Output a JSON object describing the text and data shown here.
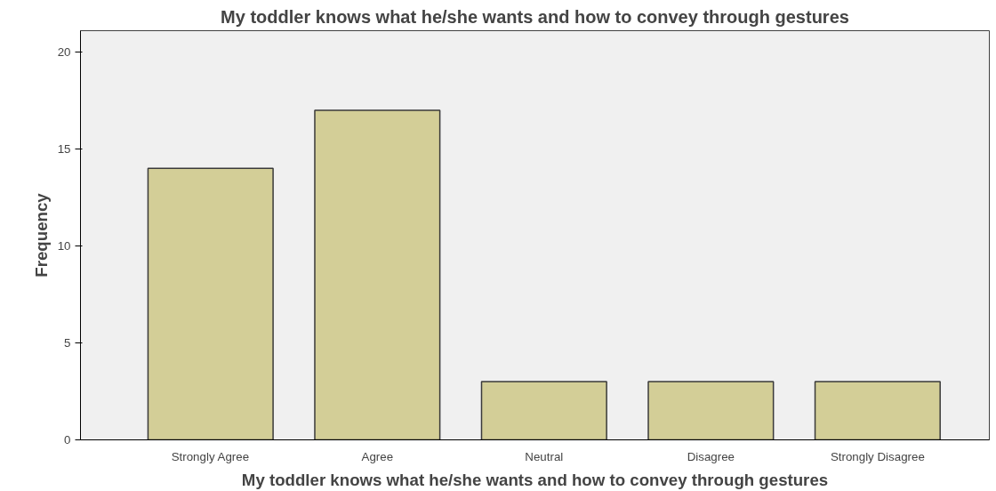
{
  "chart_data": {
    "type": "bar",
    "title": "My toddler knows what he/she wants and how to convey through gestures",
    "xlabel": "My toddler knows what he/she wants and how to convey through gestures",
    "ylabel": "Frequency",
    "categories": [
      "Strongly Agree",
      "Agree",
      "Neutral",
      "Disagree",
      "Strongly Disagree"
    ],
    "values": [
      14,
      17,
      3,
      3,
      3
    ],
    "color": "#d3ce97",
    "ylim": [
      0,
      21.1
    ],
    "yticks": [
      0,
      5,
      10,
      15,
      20
    ],
    "grid": false
  }
}
